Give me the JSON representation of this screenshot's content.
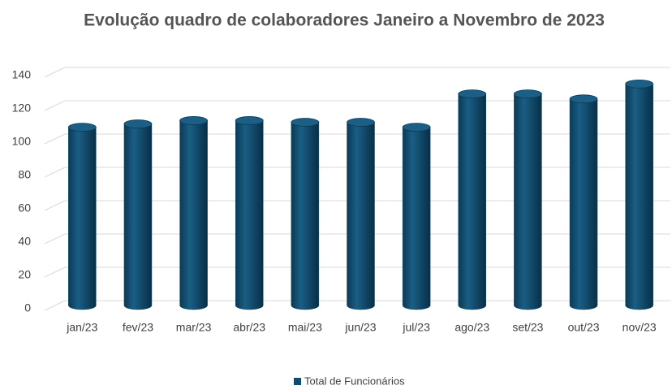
{
  "chart_data": {
    "type": "bar",
    "title": "Evolução quadro de colaboradores Janeiro a Novembro de 2023",
    "categories": [
      "jan/23",
      "fev/23",
      "mar/23",
      "abr/23",
      "mai/23",
      "jun/23",
      "jul/23",
      "ago/23",
      "set/23",
      "out/23",
      "nov/23"
    ],
    "series": [
      {
        "name": "Total de Funcionários",
        "color": "#0f4c6e",
        "values": [
          107,
          109,
          111,
          111,
          110,
          110,
          107,
          127,
          127,
          124,
          133
        ]
      }
    ],
    "ylim": [
      0,
      140
    ],
    "yticks": [
      0,
      20,
      40,
      60,
      80,
      100,
      120,
      140
    ],
    "grid": true,
    "legend": "bottom"
  }
}
